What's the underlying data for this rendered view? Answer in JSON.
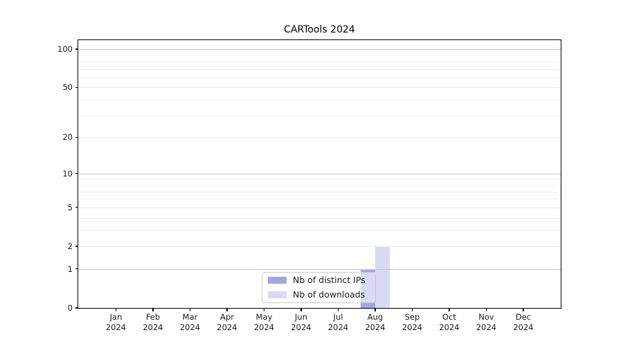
{
  "chart_data": {
    "type": "bar",
    "title": "CARTools 2024",
    "categories": [
      "Jan 2024",
      "Feb 2024",
      "Mar 2024",
      "Apr 2024",
      "May 2024",
      "Jun 2024",
      "Jul 2024",
      "Aug 2024",
      "Sep 2024",
      "Oct 2024",
      "Nov 2024",
      "Dec 2024"
    ],
    "series": [
      {
        "name": "Nb of distinct IPs",
        "color": "#a4a4e6",
        "values": [
          0,
          0,
          0,
          0,
          0,
          0,
          0,
          1,
          0,
          0,
          0,
          0
        ]
      },
      {
        "name": "Nb of downloads",
        "color": "#d9d9f6",
        "values": [
          0,
          0,
          0,
          0,
          0,
          0,
          0,
          2,
          0,
          0,
          0,
          0
        ]
      }
    ],
    "yaxis": {
      "scale": "log1p",
      "ticks": [
        0,
        1,
        2,
        5,
        10,
        20,
        50,
        100
      ],
      "major_gridlines": [
        1,
        10,
        100
      ],
      "minor_gridlines": [
        2,
        3,
        4,
        5,
        6,
        7,
        8,
        9,
        20,
        30,
        40,
        50,
        60,
        70,
        80,
        90
      ],
      "ylim": [
        0,
        100
      ]
    },
    "xlabel": "",
    "ylabel": "",
    "grid": true,
    "legend": {
      "position": "lower-center-inside",
      "labels": [
        "Nb of distinct IPs",
        "Nb of downloads"
      ]
    },
    "colors": {
      "background": "#ffffff",
      "axis": "#000000",
      "major_grid": "#c4c4c4",
      "minor_grid": "#ececec",
      "text": "#1a1a1a",
      "legend_border": "#c9c9c9"
    }
  }
}
